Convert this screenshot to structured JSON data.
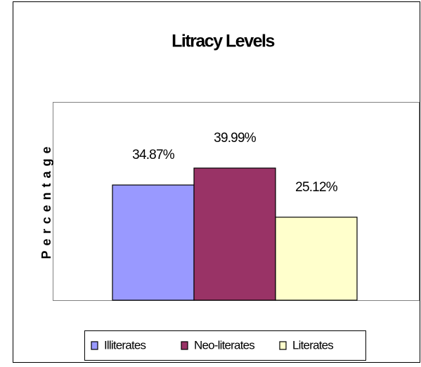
{
  "chart_data": {
    "type": "bar",
    "title": "Litracy Levels",
    "y_label": "Percentage",
    "categories": [
      null
    ],
    "series": [
      {
        "name": "Illiterates",
        "color": "#9999FF",
        "values": [
          34.87
        ],
        "value_labels": [
          "34.87%"
        ]
      },
      {
        "name": "Neo-literates",
        "color": "#993366",
        "values": [
          39.99
        ],
        "value_labels": [
          "39.99%"
        ]
      },
      {
        "name": "Literates",
        "color": "#FFFFCC",
        "values": [
          25.12
        ],
        "value_labels": [
          "25.12%"
        ]
      }
    ],
    "ylim": [
      0,
      60
    ],
    "legend": "bottom"
  }
}
